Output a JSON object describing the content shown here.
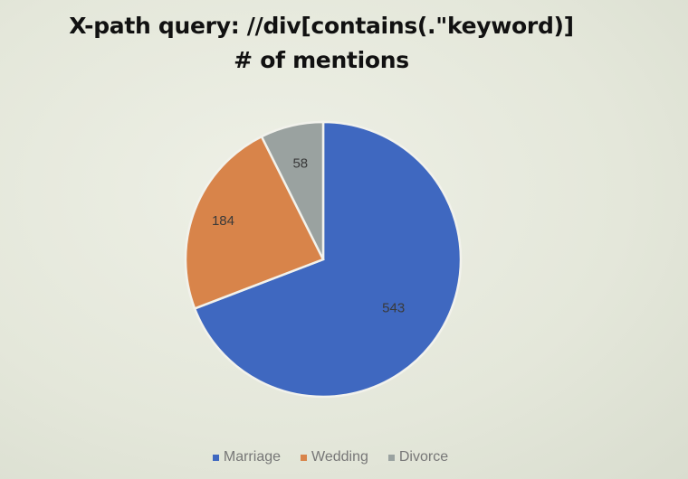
{
  "chart_data": {
    "type": "pie",
    "title_lines": [
      "X-path query: //div[contains(.\"keyword)]",
      "# of mentions"
    ],
    "categories": [
      "Marriage",
      "Wedding",
      "Divorce"
    ],
    "values": [
      543,
      184,
      58
    ],
    "colors": [
      "#3f68c0",
      "#d8844a",
      "#9aa2a0"
    ],
    "data_labels": [
      "543",
      "184",
      "58"
    ],
    "legend_position": "bottom"
  }
}
